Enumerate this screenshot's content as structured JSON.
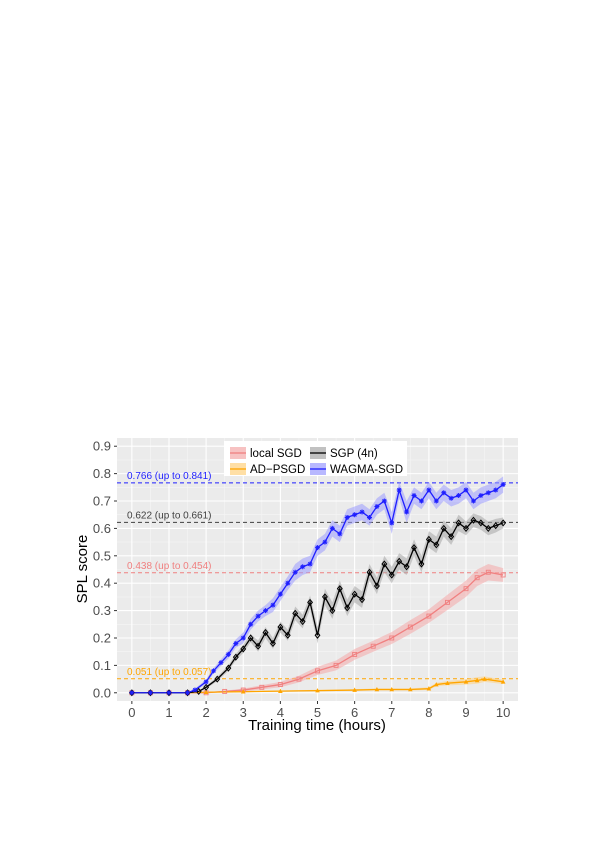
{
  "chart_data": {
    "type": "line",
    "xlabel": "Training time (hours)",
    "ylabel": "SPL score",
    "xlim": [
      -0.4,
      10.4
    ],
    "ylim": [
      -0.03,
      0.93
    ],
    "xticks": [
      0,
      1,
      2,
      3,
      4,
      5,
      6,
      7,
      8,
      9,
      10
    ],
    "yticks": [
      0.0,
      0.1,
      0.2,
      0.3,
      0.4,
      0.5,
      0.6,
      0.7,
      0.8,
      0.9
    ],
    "xtick_labels": [
      "0",
      "1",
      "2",
      "3",
      "4",
      "5",
      "6",
      "7",
      "8",
      "9",
      "10"
    ],
    "ytick_labels": [
      "0.0",
      "0.1",
      "0.2",
      "0.3",
      "0.4",
      "0.5",
      "0.6",
      "0.7",
      "0.8",
      "0.9"
    ],
    "grid": true,
    "legend_position": "top-center",
    "series": [
      {
        "name": "local SGD",
        "color": "#f08080",
        "band_color": "#f4a8a8",
        "marker": "square-open",
        "x": [
          0,
          0.5,
          1,
          1.5,
          2,
          2.5,
          3,
          3.5,
          4,
          4.5,
          5,
          5.5,
          6,
          6.5,
          7,
          7.5,
          8,
          8.5,
          9,
          9.3,
          9.6,
          10
        ],
        "y": [
          0,
          0,
          0,
          0,
          0,
          0.005,
          0.01,
          0.02,
          0.03,
          0.05,
          0.08,
          0.1,
          0.14,
          0.17,
          0.2,
          0.24,
          0.28,
          0.33,
          0.38,
          0.42,
          0.44,
          0.43
        ],
        "spread": [
          0,
          0,
          0,
          0,
          0,
          0.003,
          0.005,
          0.008,
          0.01,
          0.012,
          0.015,
          0.018,
          0.02,
          0.02,
          0.022,
          0.025,
          0.025,
          0.028,
          0.03,
          0.03,
          0.03,
          0.025
        ]
      },
      {
        "name": "AD−PSGD",
        "color": "#ffa500",
        "band_color": "#ffd27f",
        "marker": "triangle",
        "x": [
          0,
          0.5,
          1,
          1.5,
          2,
          3,
          4,
          5,
          6,
          6.6,
          7,
          7.5,
          8,
          8.2,
          8.5,
          9,
          9.3,
          9.5,
          10
        ],
        "y": [
          0,
          0,
          0,
          0,
          0.002,
          0.004,
          0.006,
          0.008,
          0.01,
          0.012,
          0.012,
          0.012,
          0.015,
          0.03,
          0.035,
          0.04,
          0.045,
          0.05,
          0.04
        ],
        "spread": [
          0,
          0,
          0,
          0,
          0.001,
          0.002,
          0.002,
          0.003,
          0.003,
          0.004,
          0.004,
          0.004,
          0.005,
          0.006,
          0.008,
          0.01,
          0.012,
          0.01,
          0.008
        ]
      },
      {
        "name": "SGP (4n)",
        "color": "#000000",
        "band_color": "#a6a6a6",
        "marker": "diamond",
        "x": [
          0,
          0.5,
          1,
          1.5,
          1.8,
          2,
          2.3,
          2.6,
          2.8,
          3,
          3.2,
          3.4,
          3.6,
          3.8,
          4,
          4.2,
          4.4,
          4.6,
          4.8,
          5,
          5.2,
          5.4,
          5.6,
          5.8,
          6,
          6.2,
          6.4,
          6.6,
          6.8,
          7,
          7.2,
          7.4,
          7.6,
          7.8,
          8,
          8.2,
          8.4,
          8.6,
          8.8,
          9,
          9.2,
          9.4,
          9.6,
          9.8,
          10
        ],
        "y": [
          0,
          0,
          0,
          0,
          0.005,
          0.02,
          0.05,
          0.09,
          0.13,
          0.16,
          0.2,
          0.17,
          0.22,
          0.18,
          0.24,
          0.21,
          0.29,
          0.26,
          0.33,
          0.21,
          0.35,
          0.3,
          0.38,
          0.31,
          0.36,
          0.34,
          0.44,
          0.39,
          0.47,
          0.43,
          0.48,
          0.46,
          0.53,
          0.47,
          0.56,
          0.54,
          0.6,
          0.57,
          0.62,
          0.6,
          0.63,
          0.62,
          0.6,
          0.61,
          0.62
        ],
        "spread": [
          0,
          0,
          0,
          0,
          0.003,
          0.005,
          0.008,
          0.01,
          0.012,
          0.015,
          0.015,
          0.02,
          0.02,
          0.02,
          0.02,
          0.02,
          0.025,
          0.025,
          0.025,
          0.03,
          0.03,
          0.03,
          0.03,
          0.03,
          0.03,
          0.03,
          0.03,
          0.03,
          0.03,
          0.03,
          0.03,
          0.03,
          0.03,
          0.03,
          0.03,
          0.03,
          0.03,
          0.03,
          0.03,
          0.025,
          0.025,
          0.025,
          0.025,
          0.025,
          0.02
        ]
      },
      {
        "name": "WAGMA-SGD",
        "color": "#1f1fff",
        "band_color": "#9a9aff",
        "marker": "star",
        "x": [
          0,
          0.5,
          1,
          1.5,
          1.7,
          2,
          2.2,
          2.4,
          2.6,
          2.8,
          3,
          3.2,
          3.4,
          3.6,
          3.8,
          4,
          4.2,
          4.4,
          4.6,
          4.8,
          5,
          5.2,
          5.4,
          5.6,
          5.8,
          6,
          6.2,
          6.4,
          6.6,
          6.8,
          7,
          7.2,
          7.4,
          7.6,
          7.8,
          8,
          8.2,
          8.4,
          8.6,
          8.8,
          9,
          9.2,
          9.4,
          9.6,
          9.8,
          10
        ],
        "y": [
          0,
          0,
          0,
          0,
          0.01,
          0.04,
          0.08,
          0.11,
          0.14,
          0.18,
          0.2,
          0.25,
          0.28,
          0.3,
          0.32,
          0.36,
          0.4,
          0.44,
          0.46,
          0.47,
          0.53,
          0.55,
          0.6,
          0.58,
          0.64,
          0.65,
          0.66,
          0.64,
          0.68,
          0.7,
          0.62,
          0.74,
          0.66,
          0.72,
          0.7,
          0.74,
          0.7,
          0.73,
          0.71,
          0.72,
          0.74,
          0.7,
          0.72,
          0.73,
          0.74,
          0.76
        ],
        "spread": [
          0,
          0,
          0,
          0,
          0.005,
          0.008,
          0.01,
          0.012,
          0.015,
          0.015,
          0.02,
          0.02,
          0.02,
          0.02,
          0.025,
          0.025,
          0.025,
          0.03,
          0.03,
          0.03,
          0.03,
          0.03,
          0.03,
          0.03,
          0.03,
          0.03,
          0.03,
          0.03,
          0.03,
          0.03,
          0.04,
          0.03,
          0.04,
          0.03,
          0.03,
          0.03,
          0.03,
          0.03,
          0.03,
          0.03,
          0.03,
          0.03,
          0.03,
          0.03,
          0.03,
          0.03
        ]
      }
    ],
    "reference_lines": [
      {
        "y": 0.766,
        "label": "0.766 (up to 0.841)",
        "color": "#1f1fff"
      },
      {
        "y": 0.622,
        "label": "0.622 (up to 0.661)",
        "color": "#404040"
      },
      {
        "y": 0.438,
        "label": "0.438 (up to 0.454)",
        "color": "#f08080"
      },
      {
        "y": 0.051,
        "label": "0.051 (up to 0.057)",
        "color": "#ffa500"
      }
    ],
    "legend": [
      {
        "label": "local SGD",
        "color": "#f08080",
        "band": "#f4a8a8"
      },
      {
        "label": "SGP (4n)",
        "color": "#000000",
        "band": "#a6a6a6"
      },
      {
        "label": "AD−PSGD",
        "color": "#ffa500",
        "band": "#ffd27f"
      },
      {
        "label": "WAGMA-SGD",
        "color": "#1f1fff",
        "band": "#9a9aff"
      }
    ]
  }
}
